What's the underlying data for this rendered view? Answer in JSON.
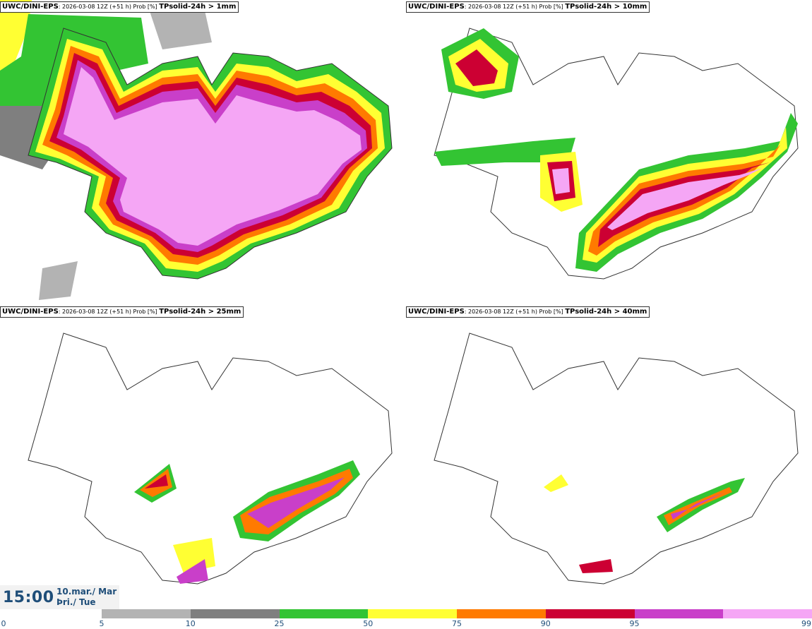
{
  "panels": [
    {
      "model": "UWC/DINI-EPS",
      "run": ": 2026-03-08 12Z (+51 h) Prob [%]",
      "variable": "TPsolid-24h > 1mm"
    },
    {
      "model": "UWC/DINI-EPS",
      "run": ": 2026-03-08 12Z (+51 h) Prob [%]",
      "variable": "TPsolid-24h > 10mm"
    },
    {
      "model": "UWC/DINI-EPS",
      "run": ": 2026-03-08 12Z (+51 h) Prob [%]",
      "variable": "TPsolid-24h > 25mm"
    },
    {
      "model": "UWC/DINI-EPS",
      "run": ": 2026-03-08 12Z (+51 h) Prob [%]",
      "variable": "TPsolid-24h > 40mm"
    }
  ],
  "valid_time": {
    "time": "15:00",
    "date_line1": "10.mar./ Mar",
    "date_line2": "Þri./ Tue"
  },
  "colorbar": {
    "ticks": [
      "0",
      "5",
      "10",
      "25",
      "50",
      "75",
      "90",
      "95",
      "99"
    ],
    "colors": [
      "#b3b3b3",
      "#7f7f7f",
      "#33c433",
      "#ffff33",
      "#ff7a00",
      "#cc0033",
      "#c93fc9",
      "#f5a6f5"
    ]
  },
  "map_colors": {
    "coast": "#333333",
    "land": "#ffffff"
  }
}
